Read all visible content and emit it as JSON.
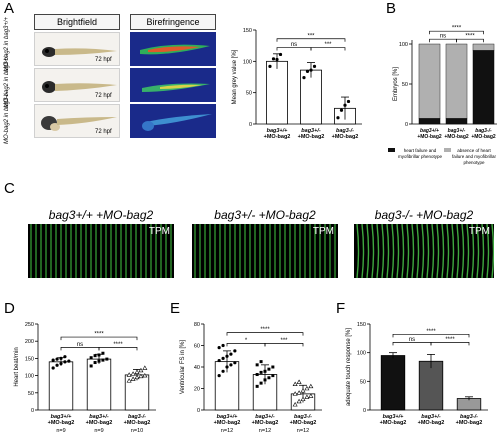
{
  "panels": {
    "A": "A",
    "B": "B",
    "C": "C",
    "D": "D",
    "E": "E",
    "F": "F"
  },
  "panel_a": {
    "col_headers": [
      "Brightfield",
      "Birefringence"
    ],
    "row_labels": [
      "MO-bag2 in bag3+/+",
      "MO-bag2 in bag3+/-",
      "MO-bag2 in bag3-/-"
    ],
    "stage": "72 hpf"
  },
  "panel_c": {
    "titles": [
      "bag3+/+ +MO-bag2",
      "bag3+/- +MO-bag2",
      "bag3-/- +MO-bag2"
    ],
    "tag": "TPM"
  },
  "group_labels": [
    [
      "bag3+/+",
      "+MO-bag2"
    ],
    [
      "bag3+/-",
      "+MO-bag2"
    ],
    [
      "bag3-/-",
      "+MO-bag2"
    ]
  ],
  "chart_data": [
    {
      "panel": "A",
      "type": "bar",
      "ylabel": "Mean grey value [%]",
      "ylim": [
        0,
        150
      ],
      "yticks": [
        0,
        50,
        100,
        150
      ],
      "values": [
        100,
        86,
        25
      ],
      "errors": [
        12,
        12,
        18
      ],
      "fills": [
        "#ffffff",
        "#ffffff",
        "#ffffff"
      ],
      "points": [
        [
          92,
          104,
          103,
          111
        ],
        [
          74,
          84,
          86,
          92
        ],
        [
          10,
          22,
          30,
          36
        ]
      ],
      "marker": "circle",
      "sig": [
        {
          "from": 0,
          "to": 1,
          "label": "ns",
          "y": 122
        },
        {
          "from": 1,
          "to": 2,
          "label": "***",
          "y": 122
        },
        {
          "from": 0,
          "to": 2,
          "label": "***",
          "y": 136
        }
      ],
      "n_labels": []
    },
    {
      "panel": "B",
      "type": "bar",
      "ylabel": "Embryos [%]",
      "ylim": [
        0,
        100
      ],
      "yticks": [
        0,
        50,
        100
      ],
      "categories": [
        "bag3+/+ +MO-bag2",
        "bag3+/- +MO-bag2",
        "bag3-/- +MO-bag2"
      ],
      "series": [
        {
          "name": "heart failure and myofibrillar phenotype",
          "values": [
            7,
            7,
            92
          ],
          "color": "#111111"
        },
        {
          "name": "absence of heart failure and myofibrillar phenotype",
          "values": [
            93,
            93,
            8
          ],
          "color": "#b0b0b0"
        }
      ],
      "sig": [
        {
          "from": 0,
          "to": 1,
          "label": "ns",
          "y": 106
        },
        {
          "from": 1,
          "to": 2,
          "label": "****",
          "y": 106
        },
        {
          "from": 0,
          "to": 2,
          "label": "****",
          "y": 116
        }
      ],
      "legend": "bottom"
    },
    {
      "panel": "D",
      "type": "bar",
      "ylabel": "Heart beat/min",
      "ylim": [
        0,
        250
      ],
      "yticks": [
        0,
        50,
        100,
        150,
        200,
        250
      ],
      "values": [
        140,
        148,
        102
      ],
      "errors": [
        12,
        14,
        16
      ],
      "fills": [
        "#ffffff",
        "#ffffff",
        "#ffffff"
      ],
      "points": [
        [
          122,
          130,
          135,
          140,
          142,
          145,
          148,
          150,
          155
        ],
        [
          128,
          138,
          142,
          145,
          148,
          152,
          158,
          160,
          165
        ],
        [
          85,
          90,
          95,
          98,
          100,
          102,
          105,
          110,
          115,
          122
        ]
      ],
      "marker": "mixed",
      "sig": [
        {
          "from": 0,
          "to": 1,
          "label": "ns",
          "y": 182
        },
        {
          "from": 1,
          "to": 2,
          "label": "****",
          "y": 182
        },
        {
          "from": 0,
          "to": 2,
          "label": "****",
          "y": 212
        }
      ],
      "n_labels": [
        "n=9",
        "n=9",
        "n=10"
      ]
    },
    {
      "panel": "E",
      "type": "bar",
      "ylabel": "Ventricular FS in [%]",
      "ylim": [
        0,
        80
      ],
      "yticks": [
        0,
        20,
        40,
        60,
        80
      ],
      "values": [
        45,
        33,
        15
      ],
      "errors": [
        10,
        9,
        8
      ],
      "fills": [
        "#ffffff",
        "#ffffff",
        "#ffffff"
      ],
      "points": [
        [
          32,
          36,
          40,
          42,
          44,
          46,
          48,
          50,
          52,
          55,
          58,
          60
        ],
        [
          22,
          25,
          28,
          30,
          32,
          33,
          35,
          36,
          38,
          40,
          42,
          45
        ],
        [
          5,
          8,
          10,
          12,
          13,
          15,
          16,
          18,
          20,
          22,
          24,
          26
        ]
      ],
      "marker": "mixed",
      "sig": [
        {
          "from": 0,
          "to": 1,
          "label": "*",
          "y": 62
        },
        {
          "from": 1,
          "to": 2,
          "label": "***",
          "y": 62
        },
        {
          "from": 0,
          "to": 2,
          "label": "****",
          "y": 72
        }
      ],
      "n_labels": [
        "n=12",
        "n=12",
        "n=12"
      ]
    },
    {
      "panel": "F",
      "type": "bar",
      "ylabel": "adequate touch response [%]",
      "ylim": [
        0,
        150
      ],
      "yticks": [
        0,
        50,
        100,
        150
      ],
      "values": [
        95,
        85,
        20
      ],
      "errors": [
        5,
        12,
        3
      ],
      "fills": [
        "#111111",
        "#555555",
        "#999999"
      ],
      "points": [],
      "marker": "none",
      "sig": [
        {
          "from": 0,
          "to": 1,
          "label": "ns",
          "y": 118
        },
        {
          "from": 1,
          "to": 2,
          "label": "****",
          "y": 118
        },
        {
          "from": 0,
          "to": 2,
          "label": "****",
          "y": 132
        }
      ],
      "n_labels": []
    }
  ]
}
